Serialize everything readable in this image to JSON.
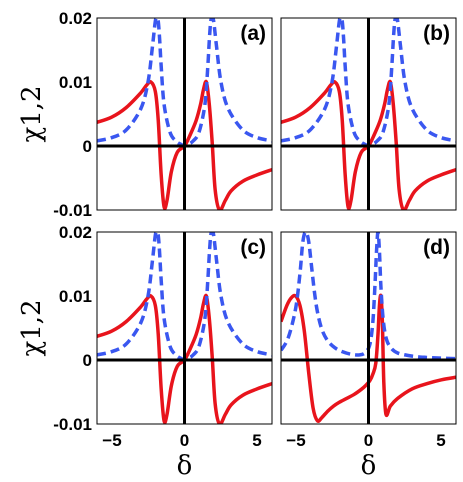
{
  "chart_data": [
    {
      "type": "line",
      "panel_label": "(a)",
      "xlim": [
        -6,
        6
      ],
      "ylim": [
        -0.01,
        0.02
      ],
      "x_ticks": [
        "−5",
        "0",
        "5"
      ],
      "y_ticks": [
        "0.02",
        "0.01",
        "0",
        "-0.01"
      ],
      "ylabel": "χ1,2",
      "xlabel": "",
      "series": [
        {
          "style": "solid",
          "color": "#e8141c",
          "x": [
            -6.0,
            -5.0,
            -4.0,
            -3.0,
            -2.6,
            -2.3,
            -2.0,
            -1.8,
            -1.6,
            -1.4,
            -1.2,
            -0.9,
            -0.5,
            0.0,
            0.4,
            0.8,
            1.1,
            1.3,
            1.5,
            1.7,
            1.9,
            2.1,
            2.4,
            2.8,
            3.2,
            4.0,
            5.0,
            6.0
          ],
          "y": [
            0.0037,
            0.0045,
            0.006,
            0.0083,
            0.0095,
            0.01,
            0.0085,
            0.004,
            -0.0045,
            -0.0095,
            -0.0085,
            -0.004,
            -0.001,
            0.0,
            0.0018,
            0.004,
            0.0065,
            0.0088,
            0.01,
            0.0065,
            0.0005,
            -0.0068,
            -0.01,
            -0.0085,
            -0.007,
            -0.0055,
            -0.0045,
            -0.0037
          ]
        },
        {
          "style": "dashed",
          "color": "#3a57f0",
          "x": [
            -6.0,
            -5.0,
            -4.0,
            -3.0,
            -2.5,
            -2.2,
            -2.0,
            -1.9,
            -1.8,
            -1.7,
            -1.6,
            -1.4,
            -1.0,
            -0.6,
            -0.2,
            0.0,
            0.2,
            0.6,
            1.0,
            1.4,
            1.6,
            1.7,
            1.8,
            1.9,
            2.0,
            2.2,
            2.5,
            3.0,
            4.0,
            5.0,
            6.0
          ],
          "y": [
            0.0008,
            0.0013,
            0.0025,
            0.0058,
            0.01,
            0.0155,
            0.0195,
            0.02,
            0.0195,
            0.0165,
            0.0125,
            0.0065,
            0.0022,
            0.0008,
            0.0002,
            0.0,
            0.0002,
            0.0008,
            0.0022,
            0.0065,
            0.0125,
            0.0165,
            0.0195,
            0.02,
            0.0195,
            0.0155,
            0.01,
            0.0058,
            0.0025,
            0.0013,
            0.0008
          ]
        }
      ]
    },
    {
      "type": "line",
      "panel_label": "(b)",
      "xlim": [
        -6,
        6
      ],
      "ylim": [
        -0.01,
        0.02
      ],
      "x_ticks": [],
      "y_ticks": [],
      "series": [
        {
          "style": "solid",
          "color": "#e8141c",
          "x": [
            -6.0,
            -5.0,
            -4.0,
            -3.0,
            -2.6,
            -2.3,
            -2.0,
            -1.8,
            -1.6,
            -1.4,
            -1.2,
            -0.9,
            -0.5,
            0.0,
            0.4,
            0.8,
            1.1,
            1.3,
            1.5,
            1.7,
            1.9,
            2.1,
            2.4,
            2.8,
            3.2,
            4.0,
            5.0,
            6.0
          ],
          "y": [
            0.0037,
            0.0045,
            0.006,
            0.0083,
            0.0095,
            0.01,
            0.0085,
            0.004,
            -0.0045,
            -0.0095,
            -0.0085,
            -0.004,
            -0.001,
            0.0,
            0.0018,
            0.004,
            0.0065,
            0.0088,
            0.01,
            0.0065,
            0.0005,
            -0.0068,
            -0.01,
            -0.0085,
            -0.007,
            -0.0055,
            -0.0045,
            -0.0037
          ]
        },
        {
          "style": "dashed",
          "color": "#3a57f0",
          "x": [
            -6.0,
            -5.0,
            -4.0,
            -3.0,
            -2.5,
            -2.2,
            -2.0,
            -1.9,
            -1.8,
            -1.7,
            -1.6,
            -1.4,
            -1.0,
            -0.6,
            -0.2,
            0.0,
            0.2,
            0.6,
            1.0,
            1.4,
            1.6,
            1.7,
            1.8,
            1.9,
            2.0,
            2.2,
            2.5,
            3.0,
            4.0,
            5.0,
            6.0
          ],
          "y": [
            0.0008,
            0.0013,
            0.0025,
            0.0058,
            0.01,
            0.0155,
            0.0195,
            0.02,
            0.0195,
            0.0165,
            0.0125,
            0.0065,
            0.0022,
            0.0008,
            0.0002,
            0.0,
            0.0002,
            0.0008,
            0.0022,
            0.0065,
            0.0125,
            0.0165,
            0.0195,
            0.02,
            0.0195,
            0.0155,
            0.01,
            0.0058,
            0.0025,
            0.0013,
            0.0008
          ]
        }
      ]
    },
    {
      "type": "line",
      "panel_label": "(c)",
      "xlim": [
        -6,
        6
      ],
      "ylim": [
        -0.01,
        0.02
      ],
      "x_ticks": [
        "−5",
        "0",
        "5"
      ],
      "y_ticks": [
        "0.02",
        "0.01",
        "0",
        "-0.01"
      ],
      "ylabel": "χ1,2",
      "xlabel": "δ",
      "series": [
        {
          "style": "solid",
          "color": "#e8141c",
          "x": [
            -6.0,
            -5.0,
            -4.0,
            -3.0,
            -2.6,
            -2.3,
            -2.0,
            -1.8,
            -1.6,
            -1.4,
            -1.2,
            -0.9,
            -0.5,
            0.0,
            0.4,
            0.8,
            1.1,
            1.3,
            1.5,
            1.7,
            1.9,
            2.1,
            2.4,
            2.8,
            3.2,
            4.0,
            5.0,
            6.0
          ],
          "y": [
            0.0037,
            0.0045,
            0.006,
            0.0083,
            0.0095,
            0.01,
            0.0085,
            0.004,
            -0.0045,
            -0.0095,
            -0.0085,
            -0.004,
            -0.001,
            0.0,
            0.0018,
            0.004,
            0.0065,
            0.0088,
            0.01,
            0.0065,
            0.0005,
            -0.0068,
            -0.01,
            -0.0085,
            -0.007,
            -0.0055,
            -0.0045,
            -0.0037
          ]
        },
        {
          "style": "dashed",
          "color": "#3a57f0",
          "x": [
            -6.0,
            -5.0,
            -4.0,
            -3.0,
            -2.5,
            -2.2,
            -2.0,
            -1.9,
            -1.8,
            -1.7,
            -1.6,
            -1.4,
            -1.0,
            -0.6,
            -0.2,
            0.0,
            0.2,
            0.6,
            1.0,
            1.4,
            1.6,
            1.7,
            1.8,
            1.9,
            2.0,
            2.2,
            2.5,
            3.0,
            4.0,
            5.0,
            6.0
          ],
          "y": [
            0.0008,
            0.0013,
            0.0025,
            0.0058,
            0.01,
            0.0155,
            0.0195,
            0.02,
            0.0195,
            0.0165,
            0.0125,
            0.0065,
            0.0022,
            0.0008,
            0.0002,
            0.0,
            0.0002,
            0.0008,
            0.0022,
            0.0065,
            0.0125,
            0.0165,
            0.0195,
            0.02,
            0.0195,
            0.0155,
            0.01,
            0.0058,
            0.0025,
            0.0013,
            0.0008
          ]
        }
      ]
    },
    {
      "type": "line",
      "panel_label": "(d)",
      "xlim": [
        -6,
        6
      ],
      "ylim": [
        -0.01,
        0.02
      ],
      "x_ticks": [
        "−5",
        "0",
        "5"
      ],
      "y_ticks": [],
      "xlabel": "δ",
      "series": [
        {
          "style": "solid",
          "color": "#e8141c",
          "x": [
            -6.0,
            -5.6,
            -5.3,
            -5.0,
            -4.7,
            -4.4,
            -4.1,
            -3.8,
            -3.5,
            -3.2,
            -2.8,
            -2.4,
            -2.0,
            -1.5,
            -1.0,
            -0.5,
            -0.2,
            0.1,
            0.3,
            0.5,
            0.65,
            0.75,
            0.85,
            0.95,
            1.05,
            1.2,
            1.5,
            2.0,
            3.0,
            4.0,
            5.0,
            6.0
          ],
          "y": [
            0.006,
            0.0085,
            0.0097,
            0.01,
            0.0085,
            0.0045,
            -0.002,
            -0.0075,
            -0.0095,
            -0.009,
            -0.008,
            -0.0072,
            -0.0066,
            -0.006,
            -0.0054,
            -0.0046,
            -0.004,
            -0.0032,
            -0.0022,
            -0.0005,
            0.004,
            0.0085,
            0.01,
            0.006,
            -0.0035,
            -0.0085,
            -0.0072,
            -0.006,
            -0.0045,
            -0.0037,
            -0.0031,
            -0.0027
          ]
        },
        {
          "style": "dashed",
          "color": "#3a57f0",
          "x": [
            -6.0,
            -5.5,
            -5.0,
            -4.7,
            -4.5,
            -4.3,
            -4.1,
            -3.9,
            -3.7,
            -3.5,
            -3.2,
            -2.8,
            -2.3,
            -1.8,
            -1.2,
            -0.6,
            -0.2,
            0.1,
            0.3,
            0.45,
            0.55,
            0.65,
            0.75,
            0.85,
            1.0,
            1.2,
            1.5,
            2.0,
            3.0,
            4.0,
            5.0,
            6.0
          ],
          "y": [
            0.0015,
            0.0035,
            0.008,
            0.0135,
            0.0185,
            0.02,
            0.0185,
            0.0145,
            0.0105,
            0.0075,
            0.0048,
            0.003,
            0.0019,
            0.0013,
            0.0009,
            0.0008,
            0.0012,
            0.0025,
            0.006,
            0.012,
            0.017,
            0.02,
            0.017,
            0.0115,
            0.0065,
            0.0035,
            0.002,
            0.0011,
            0.0006,
            0.0004,
            0.0003,
            0.0002
          ]
        }
      ]
    }
  ]
}
